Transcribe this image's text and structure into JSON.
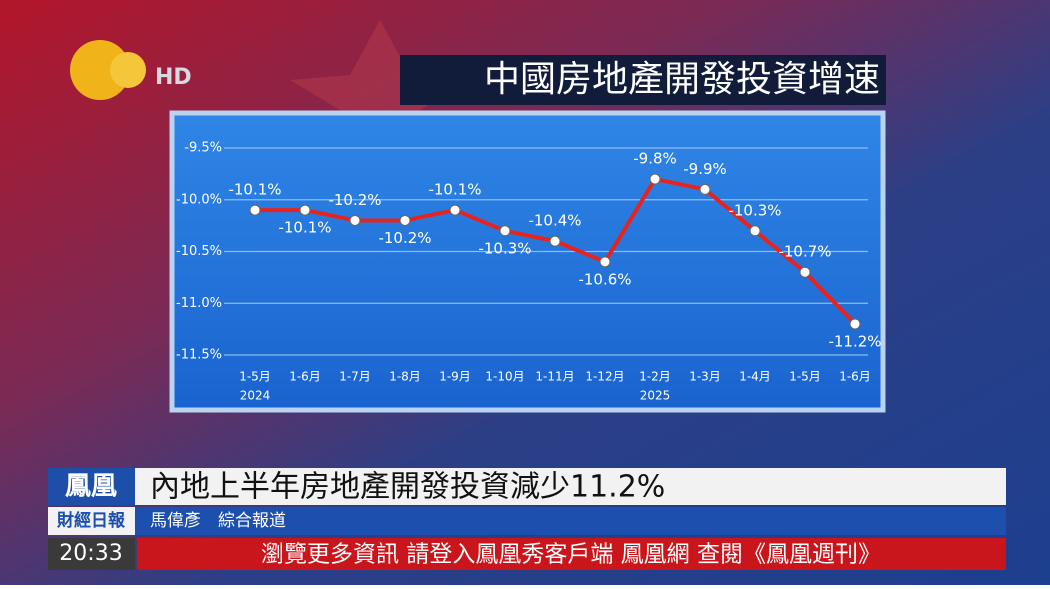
{
  "channel": {
    "logo_text": "HD"
  },
  "chart_data": {
    "type": "line",
    "title": "中國房地產開發投資增速",
    "categories": [
      "1-5月",
      "1-6月",
      "1-7月",
      "1-8月",
      "1-9月",
      "1-10月",
      "1-11月",
      "1-12月",
      "1-2月",
      "1-3月",
      "1-4月",
      "1-5月",
      "1-6月"
    ],
    "year_labels": [
      "2024",
      null,
      null,
      null,
      null,
      null,
      null,
      null,
      "2025",
      null,
      null,
      null,
      null
    ],
    "values": [
      -10.1,
      -10.1,
      -10.2,
      -10.2,
      -10.1,
      -10.3,
      -10.4,
      -10.6,
      -9.8,
      -9.9,
      -10.3,
      -10.7,
      -11.2
    ],
    "value_labels": [
      "-10.1%",
      "-10.1%",
      "-10.2%",
      "-10.2%",
      "-10.1%",
      "-10.3%",
      "-10.4%",
      "-10.6%",
      "-9.8%",
      "-9.9%",
      "-10.3%",
      "-10.7%",
      "-11.2%"
    ],
    "color": "#e8231d",
    "ylim": [
      -11.5,
      -9.5
    ],
    "yticks": [
      {
        "value": -9.5,
        "label": "-9.5%"
      },
      {
        "value": -10.0,
        "label": "-10.0%"
      },
      {
        "value": -10.5,
        "label": "-10.5%"
      },
      {
        "value": -11.0,
        "label": "-11.0%"
      },
      {
        "value": -11.5,
        "label": "-11.5%"
      }
    ],
    "grid": true
  },
  "lower_third": {
    "brand": "鳳凰",
    "headline": "內地上半年房地產開發投資減少11.2%",
    "program": "財經日報",
    "reporter": "馬偉彥　綜合報道",
    "time": "20:33",
    "ticker": "瀏覽更多資訊  請登入鳳凰秀客戶端  鳳凰網  查閱《鳳凰週刊》"
  }
}
